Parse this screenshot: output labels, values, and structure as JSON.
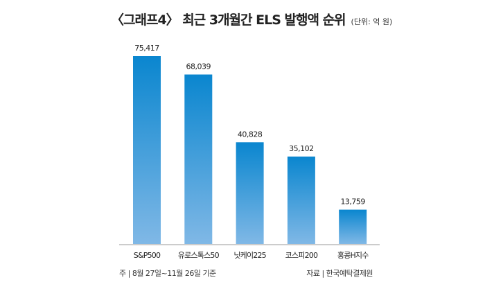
{
  "chart_data": {
    "type": "bar",
    "title": "〈그래프4〉 최근 3개월간 ELS 발행액 순위",
    "unit": "(단위: 억 원)",
    "categories": [
      "S&P500",
      "유로스톡스50",
      "닛케이225",
      "코스피200",
      "홍콩H지수"
    ],
    "values": [
      75417,
      68039,
      40828,
      35102,
      13759
    ],
    "value_labels": [
      "75,417",
      "68,039",
      "40,828",
      "35,102",
      "13,759"
    ],
    "xlabel": "",
    "ylabel": "",
    "ylim": [
      0,
      75417
    ],
    "grid": false,
    "colors": {
      "top": "#0a86cf",
      "bottom": "#80b8e6"
    }
  },
  "notes": {
    "period": "주 | 8월 27일~11월 26일 기준",
    "source": "자료 | 한국예탁결제원"
  }
}
